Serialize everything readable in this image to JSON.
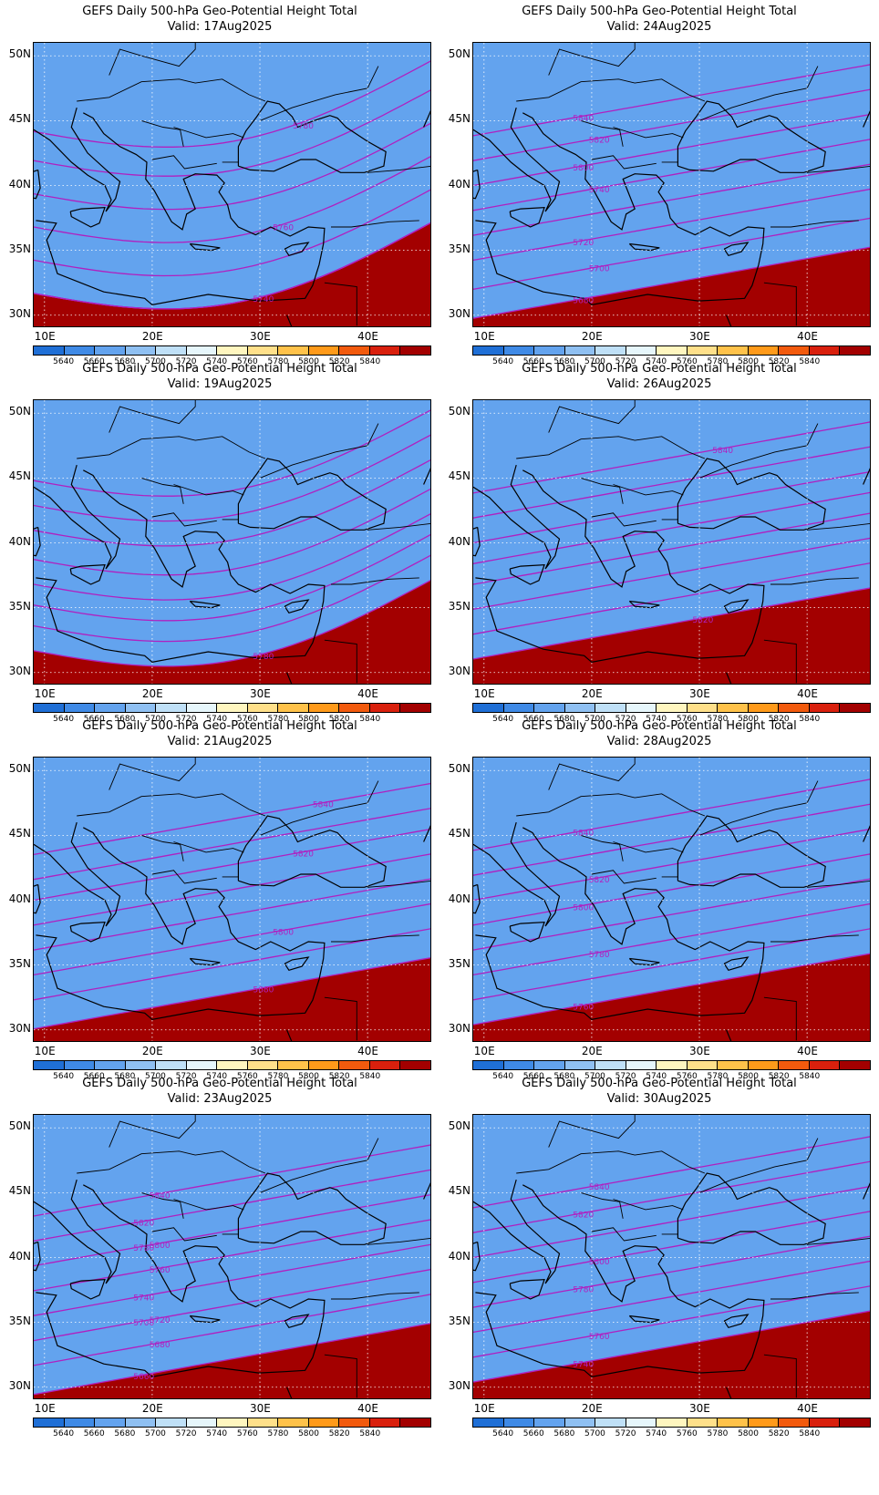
{
  "title_main": "GEFS Daily 500-hPa Geo-Potential Height Total",
  "panels": [
    {
      "valid": "Valid: 17Aug2025",
      "contour_labels": [
        "5740",
        "5760",
        "5780"
      ],
      "line_offsets": [
        -2.6,
        -2.6,
        -2.6,
        -1.8,
        -1.0,
        -0.2,
        0.6,
        1.3
      ],
      "bend": 1
    },
    {
      "valid": "Valid: 24Aug2025",
      "contour_labels": [
        "5680",
        "5700",
        "5720",
        "5740",
        "5800",
        "5820",
        "5840"
      ],
      "line_offsets": [
        -3.2,
        -2.5,
        -1.8,
        -1.2,
        -0.6,
        0.0,
        0.6,
        1.2
      ],
      "bend": 0
    },
    {
      "valid": "Valid: 19Aug2025",
      "contour_labels": [
        "5780"
      ],
      "line_offsets": [
        -2.6,
        -2.0,
        -1.5,
        -1.0,
        -0.4,
        0.3,
        0.9,
        1.5
      ],
      "bend": 1
    },
    {
      "valid": "Valid: 26Aug2025",
      "contour_labels": [
        "5820",
        "5840"
      ],
      "line_offsets": [
        -2.8,
        -2.2,
        -1.6,
        -1.0,
        -0.5,
        0.0,
        0.6,
        1.2
      ],
      "bend": 0
    },
    {
      "valid": "Valid: 21Aug2025",
      "contour_labels": [
        "5680",
        "5800",
        "5820",
        "5840"
      ],
      "line_offsets": [
        -3.1,
        -2.4,
        -1.8,
        -1.2,
        -0.6,
        0.0,
        0.5,
        1.1
      ],
      "bend": 0
    },
    {
      "valid": "Valid: 28Aug2025",
      "contour_labels": [
        "5760",
        "5780",
        "5800",
        "5820",
        "5840"
      ],
      "line_offsets": [
        -3.0,
        -2.4,
        -1.8,
        -1.2,
        -0.6,
        0.0,
        0.6,
        1.2
      ],
      "bend": 0
    },
    {
      "valid": "Valid: 23Aug2025",
      "contour_labels": [
        "5660",
        "5680",
        "5700",
        "5720",
        "5740",
        "5760",
        "5780",
        "5800",
        "5820",
        "5840"
      ],
      "line_offsets": [
        -3.3,
        -2.6,
        -2.0,
        -1.4,
        -0.8,
        -0.2,
        0.4,
        1.0
      ],
      "bend": 0
    },
    {
      "valid": "Valid: 30Aug2025",
      "contour_labels": [
        "5740",
        "5760",
        "5780",
        "5800",
        "5820",
        "5840"
      ],
      "line_offsets": [
        -3.0,
        -2.4,
        -1.8,
        -1.2,
        -0.6,
        0.0,
        0.6,
        1.2
      ],
      "bend": 0
    }
  ],
  "axes": {
    "y_labels": [
      "50N",
      "45N",
      "40N",
      "35N",
      "30N"
    ],
    "x_labels": [
      "10E",
      "20E",
      "30E",
      "40E"
    ]
  },
  "colorbar": {
    "labels": [
      "5640",
      "5660",
      "5680",
      "5700",
      "5720",
      "5740",
      "5760",
      "5780",
      "5800",
      "5820",
      "5840"
    ],
    "colors": [
      "#1f6fd6",
      "#3f8ae6",
      "#63a3ee",
      "#8fc0f2",
      "#bfe0f7",
      "#e6f6fb",
      "#fff6bf",
      "#ffe08a",
      "#ffc24a",
      "#ff9a1a",
      "#f25a0d",
      "#d9200d",
      "#a30000"
    ]
  },
  "contour_color": "#b020c0"
}
